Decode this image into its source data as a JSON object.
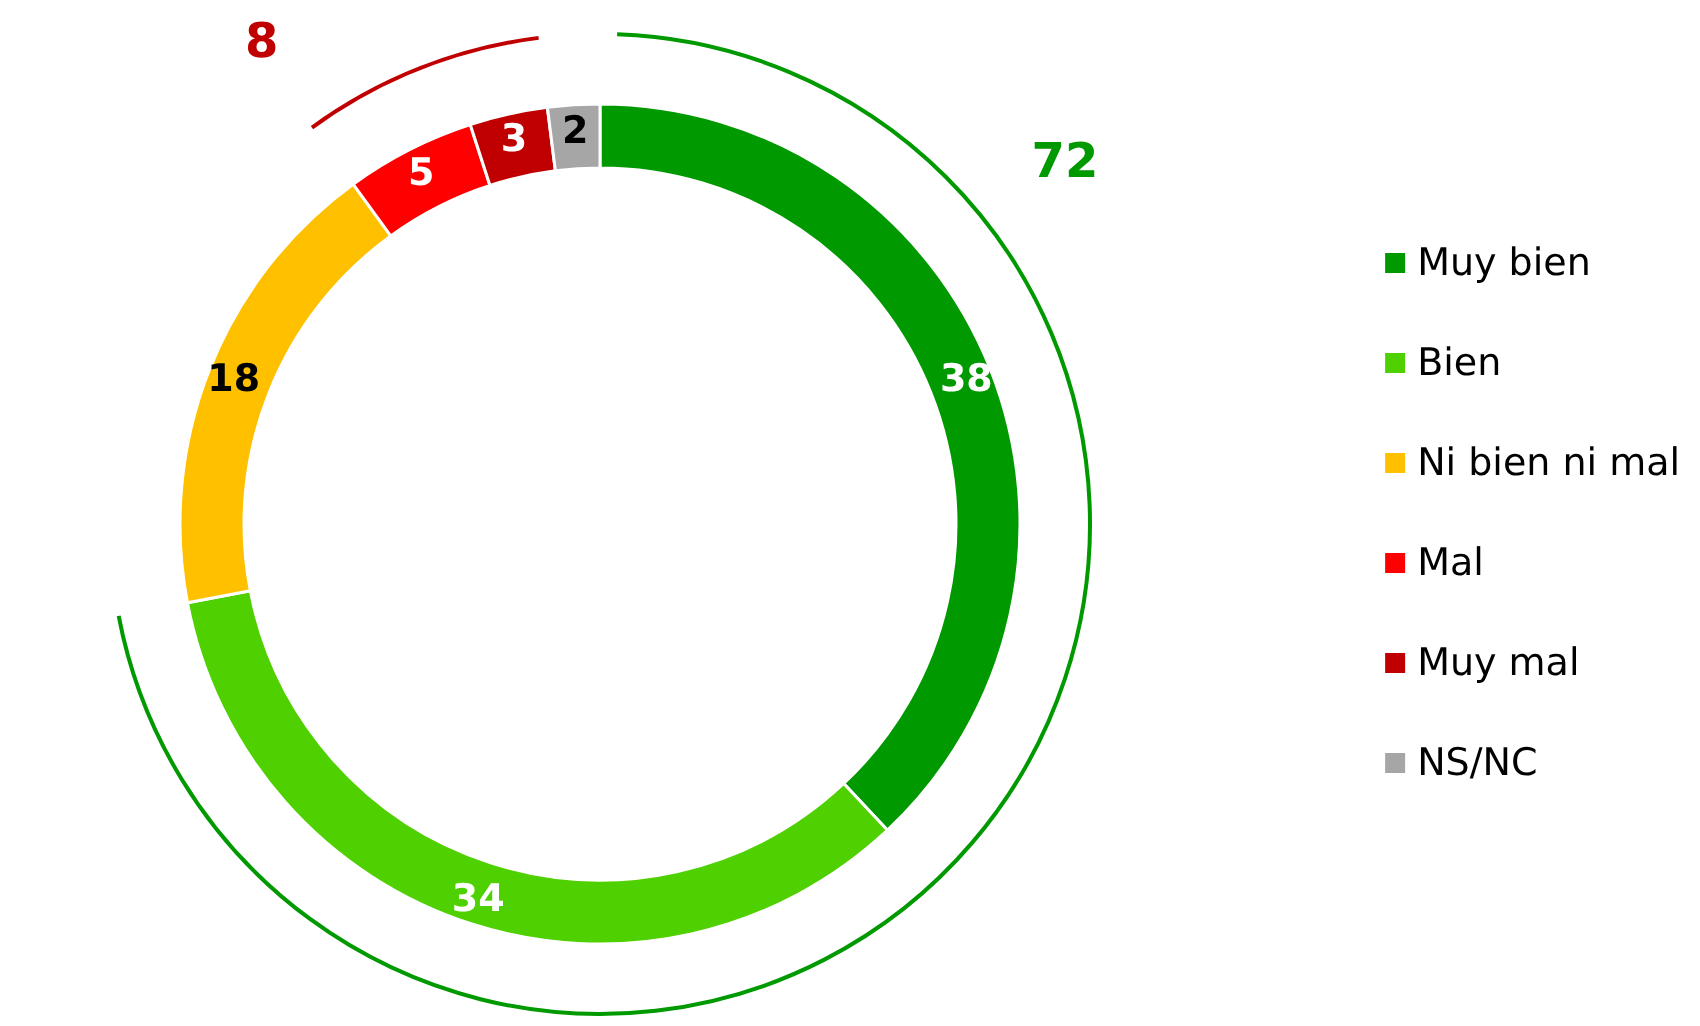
{
  "chart_data": {
    "type": "donut",
    "categories": [
      "Muy bien",
      "Bien",
      "Ni bien ni mal",
      "Mal",
      "Muy mal",
      "NS/NC"
    ],
    "values": [
      38,
      34,
      18,
      5,
      3,
      2
    ],
    "colors": [
      "#009900",
      "#4fd000",
      "#ffc000",
      "#ff0000",
      "#c00000",
      "#a6a6a6"
    ],
    "data_labels": true,
    "legend": "right",
    "annotations": [
      "72",
      "8"
    ]
  }
}
